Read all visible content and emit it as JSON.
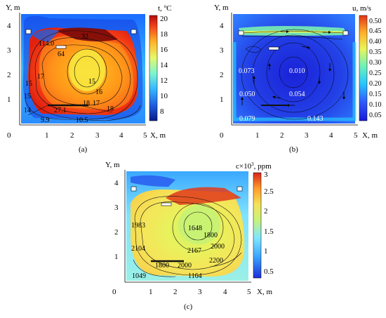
{
  "panels": {
    "a": {
      "caption": "(a)",
      "y_axis": "Y, m",
      "x_axis": "X, m",
      "colorbar_title": "t, ",
      "colorbar_unit": "C",
      "colorbar_ticks": [
        "20",
        "18",
        "16",
        "14",
        "12",
        "10",
        "8"
      ],
      "x_ticks": [
        "1",
        "2",
        "3",
        "4",
        "5"
      ],
      "y_ticks": [
        "4",
        "3",
        "2",
        "1"
      ],
      "origin": "0",
      "labels": [
        "32",
        "114.0",
        "64",
        "15",
        "16",
        "17",
        "18",
        "17",
        "27.1",
        "18",
        "15",
        "14",
        "9.9",
        "10.5",
        "15",
        "16",
        "16",
        "18"
      ]
    },
    "b": {
      "caption": "(b)",
      "y_axis": "Y, m",
      "x_axis": "X, m",
      "colorbar_title": "u, m/s",
      "colorbar_ticks": [
        "0.50",
        "0.45",
        "0.40",
        "0.35",
        "0.30",
        "0.25",
        "0.20",
        "0.15",
        "0.10",
        "0.05"
      ],
      "x_ticks": [
        "1",
        "2",
        "3",
        "4",
        "5"
      ],
      "y_ticks": [
        "4",
        "3",
        "2",
        "1"
      ],
      "origin": "0",
      "labels": [
        "0.073",
        "0.010",
        "0.050",
        "0.054",
        "0.079",
        "0.143"
      ]
    },
    "c": {
      "caption": "(c)",
      "y_axis": "Y, m",
      "x_axis": "X, m",
      "colorbar_title": "c×10",
      "colorbar_exp": "3",
      "colorbar_unit": ", ppm",
      "colorbar_ticks": [
        "3",
        "2.5",
        "2",
        "1.5",
        "1",
        "0.5"
      ],
      "x_ticks": [
        "1",
        "2",
        "3",
        "4",
        "5"
      ],
      "y_ticks": [
        "4",
        "3",
        "2",
        "1"
      ],
      "origin": "0",
      "labels": [
        "1983",
        "1648",
        "1800",
        "2000",
        "2104",
        "2167",
        "2200",
        "1800",
        "2000",
        "1049",
        "1164"
      ]
    }
  },
  "colors": {
    "temp_scale": [
      "#0a1a8a",
      "#1f5fe0",
      "#35b6ff",
      "#7ef5d0",
      "#e8f86a",
      "#ffb22a",
      "#f0401a",
      "#b40f0f"
    ],
    "vel_scale": [
      "#1818d8",
      "#2f5cff",
      "#27c6ff",
      "#6ff2b8",
      "#e9f55a",
      "#ffae28",
      "#e33318"
    ],
    "conc_scale": [
      "#1a2fd8",
      "#3aa4ff",
      "#7fe7ff",
      "#c8f37a",
      "#f4e25a",
      "#ff9c2a",
      "#d8241a"
    ]
  }
}
